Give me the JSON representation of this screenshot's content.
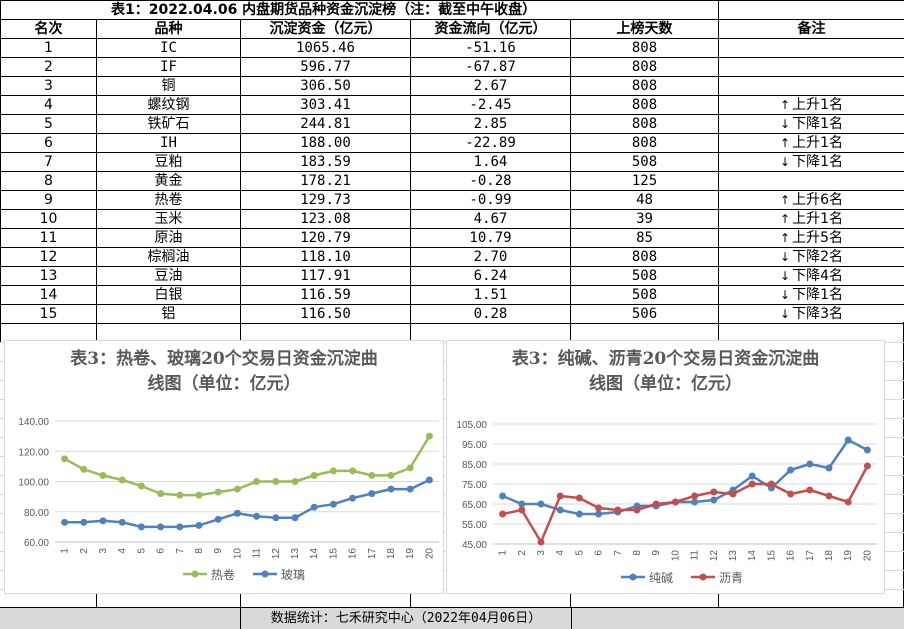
{
  "table": {
    "title": "表1：2022.04.06 内盘期货品种资金沉淀榜（注：截至中午收盘）",
    "headers": [
      "名次",
      "品种",
      "沉淀资金（亿元）",
      "资金流向（亿元）",
      "上榜天数",
      "备注"
    ],
    "rows": [
      {
        "rank": "1",
        "name": "IC",
        "capital": "1065.46",
        "flow": "-51.16",
        "days": "808",
        "note": "",
        "dir": ""
      },
      {
        "rank": "2",
        "name": "IF",
        "capital": "596.77",
        "flow": "-67.87",
        "days": "808",
        "note": "",
        "dir": ""
      },
      {
        "rank": "3",
        "name": "铜",
        "capital": "306.50",
        "flow": "2.67",
        "days": "808",
        "note": "",
        "dir": ""
      },
      {
        "rank": "4",
        "name": "螺纹钢",
        "capital": "303.41",
        "flow": "-2.45",
        "days": "808",
        "note": "上升1名",
        "dir": "↑"
      },
      {
        "rank": "5",
        "name": "铁矿石",
        "capital": "244.81",
        "flow": "2.85",
        "days": "808",
        "note": "下降1名",
        "dir": "↓"
      },
      {
        "rank": "6",
        "name": "IH",
        "capital": "188.00",
        "flow": "-22.89",
        "days": "808",
        "note": "上升1名",
        "dir": "↑"
      },
      {
        "rank": "7",
        "name": "豆粕",
        "capital": "183.59",
        "flow": "1.64",
        "days": "508",
        "note": "下降1名",
        "dir": "↓"
      },
      {
        "rank": "8",
        "name": "黄金",
        "capital": "178.21",
        "flow": "-0.28",
        "days": "125",
        "note": "",
        "dir": ""
      },
      {
        "rank": "9",
        "name": "热卷",
        "capital": "129.73",
        "flow": "-0.99",
        "days": "48",
        "note": "上升6名",
        "dir": "↑"
      },
      {
        "rank": "10",
        "name": "玉米",
        "capital": "123.08",
        "flow": "4.67",
        "days": "39",
        "note": "上升1名",
        "dir": "↑"
      },
      {
        "rank": "11",
        "name": "原油",
        "capital": "120.79",
        "flow": "10.79",
        "days": "85",
        "note": "上升5名",
        "dir": "↑"
      },
      {
        "rank": "12",
        "name": "棕榈油",
        "capital": "118.10",
        "flow": "2.70",
        "days": "808",
        "note": "下降2名",
        "dir": "↓"
      },
      {
        "rank": "13",
        "name": "豆油",
        "capital": "117.91",
        "flow": "6.24",
        "days": "508",
        "note": "下降4名",
        "dir": "↓"
      },
      {
        "rank": "14",
        "name": "白银",
        "capital": "116.59",
        "flow": "1.51",
        "days": "508",
        "note": "下降1名",
        "dir": "↓"
      },
      {
        "rank": "15",
        "name": "铝",
        "capital": "116.50",
        "flow": "0.28",
        "days": "506",
        "note": "下降3名",
        "dir": "↓"
      }
    ]
  },
  "charts": [
    {
      "title_line1": "表3：热卷、玻璃20个交易日资金沉淀曲",
      "title_line2": "线图（单位：亿元）"
    },
    {
      "title_line1": "表3：纯碱、沥青20个交易日资金沉淀曲",
      "title_line2": "线图（单位：亿元）"
    }
  ],
  "chart_data": [
    {
      "type": "line",
      "title": "表3：热卷、玻璃20个交易日资金沉淀曲线图（单位：亿元）",
      "categories": [
        "1",
        "2",
        "3",
        "4",
        "5",
        "6",
        "7",
        "8",
        "9",
        "10",
        "11",
        "12",
        "13",
        "14",
        "15",
        "16",
        "17",
        "18",
        "19",
        "20"
      ],
      "ylim": [
        60,
        140
      ],
      "yticks": [
        "60.00",
        "80.00",
        "100.00",
        "120.00",
        "140.00"
      ],
      "grid": true,
      "legend": "bottom",
      "series": [
        {
          "name": "热卷",
          "color": "#9bbb59",
          "values": [
            115,
            108,
            104,
            101,
            97,
            92,
            91,
            91,
            93,
            95,
            100,
            100,
            100,
            104,
            107,
            107,
            104,
            104,
            109,
            130
          ]
        },
        {
          "name": "玻璃",
          "color": "#4f81bd",
          "values": [
            73,
            73,
            74,
            73,
            70,
            70,
            70,
            71,
            75,
            79,
            77,
            76,
            76,
            83,
            85,
            89,
            92,
            95,
            95,
            101
          ]
        }
      ]
    },
    {
      "type": "line",
      "title": "表3：纯碱、沥青20个交易日资金沉淀曲线图（单位：亿元）",
      "categories": [
        "1",
        "2",
        "3",
        "4",
        "5",
        "6",
        "7",
        "8",
        "9",
        "10",
        "11",
        "12",
        "13",
        "14",
        "15",
        "16",
        "17",
        "18",
        "19",
        "20"
      ],
      "ylim": [
        45,
        105
      ],
      "yticks": [
        "45.00",
        "55.00",
        "65.00",
        "75.00",
        "85.00",
        "95.00",
        "105.00"
      ],
      "grid": true,
      "legend": "bottom",
      "series": [
        {
          "name": "纯碱",
          "color": "#4f81bd",
          "values": [
            69,
            65,
            65,
            62,
            60,
            60,
            61,
            64,
            64,
            66,
            66,
            67,
            72,
            79,
            73,
            82,
            85,
            83,
            97,
            92
          ]
        },
        {
          "name": "沥青",
          "color": "#c0504d",
          "values": [
            60,
            62,
            46,
            69,
            68,
            63,
            62,
            62,
            65,
            66,
            69,
            71,
            70,
            75,
            75,
            70,
            72,
            69,
            66,
            84
          ]
        }
      ]
    }
  ],
  "footer": "数据统计：七禾研究中心（2022年04月06日）"
}
